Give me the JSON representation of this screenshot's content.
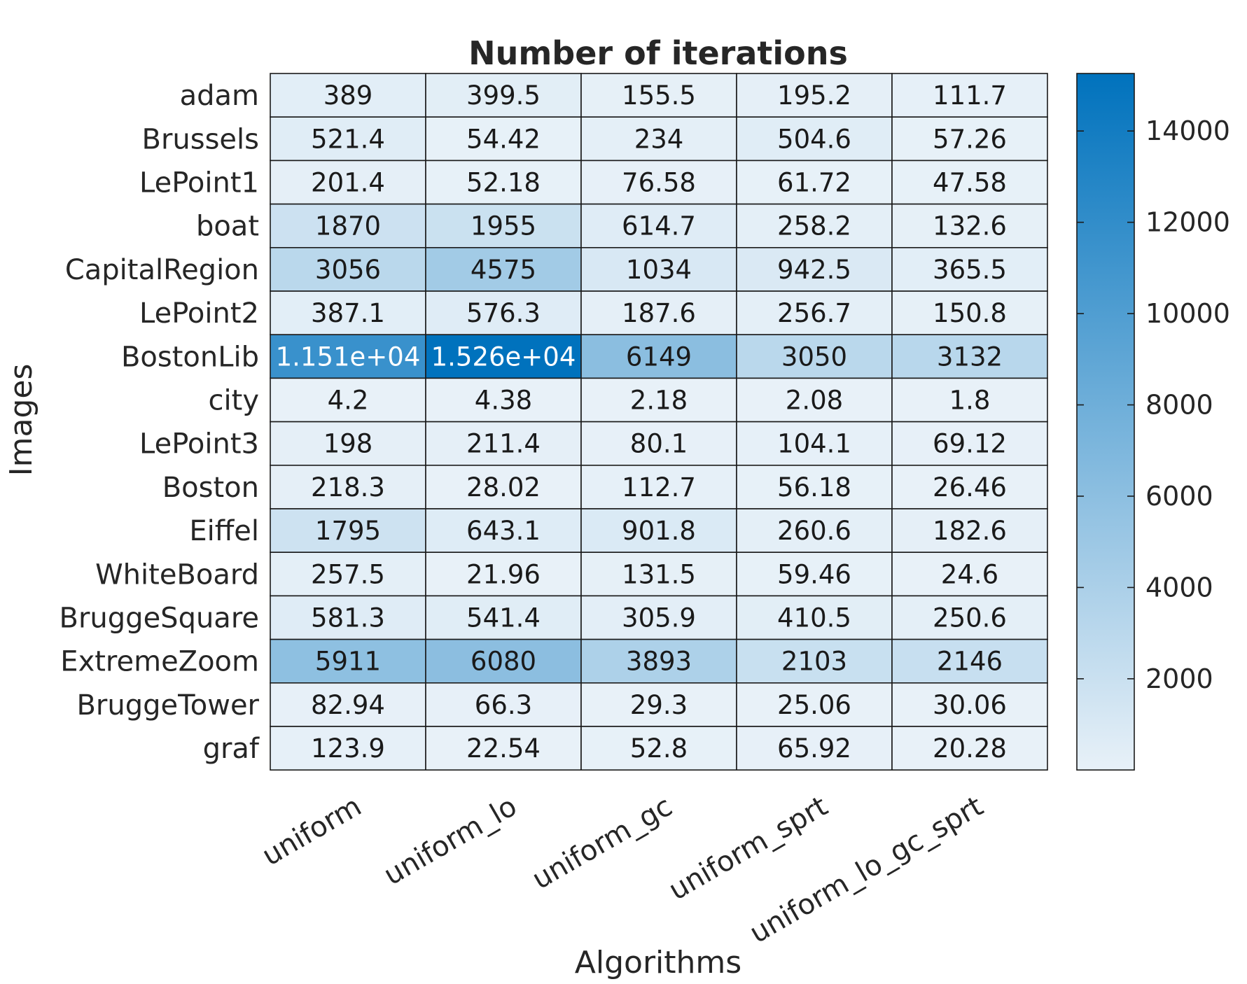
{
  "chart_data": {
    "type": "heatmap",
    "title": "Number of iterations",
    "xlabel": "Algorithms",
    "ylabel": "Images",
    "columns": [
      "uniform",
      "uniform_lo",
      "uniform_gc",
      "uniform_sprt",
      "uniform_lo_gc_sprt"
    ],
    "rows": [
      "adam",
      "Brussels",
      "LePoint1",
      "boat",
      "CapitalRegion",
      "LePoint2",
      "BostonLib",
      "city",
      "LePoint3",
      "Boston",
      "Eiffel",
      "WhiteBoard",
      "BruggeSquare",
      "ExtremeZoom",
      "BruggeTower",
      "graf"
    ],
    "values": [
      [
        389,
        399.5,
        155.5,
        195.2,
        111.7
      ],
      [
        521.4,
        54.42,
        234,
        504.6,
        57.26
      ],
      [
        201.4,
        52.18,
        76.58,
        61.72,
        47.58
      ],
      [
        1870,
        1955,
        614.7,
        258.2,
        132.6
      ],
      [
        3056,
        4575,
        1034,
        942.5,
        365.5
      ],
      [
        387.1,
        576.3,
        187.6,
        256.7,
        150.8
      ],
      [
        11510,
        15260,
        6149,
        3050,
        3132
      ],
      [
        4.2,
        4.38,
        2.18,
        2.08,
        1.8
      ],
      [
        198,
        211.4,
        80.1,
        104.1,
        69.12
      ],
      [
        218.3,
        28.02,
        112.7,
        56.18,
        26.46
      ],
      [
        1795,
        643.1,
        901.8,
        260.6,
        182.6
      ],
      [
        257.5,
        21.96,
        131.5,
        59.46,
        24.6
      ],
      [
        581.3,
        541.4,
        305.9,
        410.5,
        250.6
      ],
      [
        5911,
        6080,
        3893,
        2103,
        2146
      ],
      [
        82.94,
        66.3,
        29.3,
        25.06,
        30.06
      ],
      [
        123.9,
        22.54,
        52.8,
        65.92,
        20.28
      ]
    ],
    "labels": [
      [
        "389",
        "399.5",
        "155.5",
        "195.2",
        "111.7"
      ],
      [
        "521.4",
        "54.42",
        "234",
        "504.6",
        "57.26"
      ],
      [
        "201.4",
        "52.18",
        "76.58",
        "61.72",
        "47.58"
      ],
      [
        "1870",
        "1955",
        "614.7",
        "258.2",
        "132.6"
      ],
      [
        "3056",
        "4575",
        "1034",
        "942.5",
        "365.5"
      ],
      [
        "387.1",
        "576.3",
        "187.6",
        "256.7",
        "150.8"
      ],
      [
        "1.151e+04",
        "1.526e+04",
        "6149",
        "3050",
        "3132"
      ],
      [
        "4.2",
        "4.38",
        "2.18",
        "2.08",
        "1.8"
      ],
      [
        "198",
        "211.4",
        "80.1",
        "104.1",
        "69.12"
      ],
      [
        "218.3",
        "28.02",
        "112.7",
        "56.18",
        "26.46"
      ],
      [
        "1795",
        "643.1",
        "901.8",
        "260.6",
        "182.6"
      ],
      [
        "257.5",
        "21.96",
        "131.5",
        "59.46",
        "24.6"
      ],
      [
        "581.3",
        "541.4",
        "305.9",
        "410.5",
        "250.6"
      ],
      [
        "5911",
        "6080",
        "3893",
        "2103",
        "2146"
      ],
      [
        "82.94",
        "66.3",
        "29.3",
        "25.06",
        "30.06"
      ],
      [
        "123.9",
        "22.54",
        "52.8",
        "65.92",
        "20.28"
      ]
    ],
    "colorbar": {
      "range": [
        1.8,
        15260
      ],
      "ticks": [
        2000,
        4000,
        6000,
        8000,
        10000,
        12000,
        14000
      ],
      "tick_labels": [
        "2000",
        "4000",
        "6000",
        "8000",
        "10000",
        "12000",
        "14000"
      ],
      "color_low": "#e8f1f8",
      "color_high": "#0072bd"
    }
  }
}
